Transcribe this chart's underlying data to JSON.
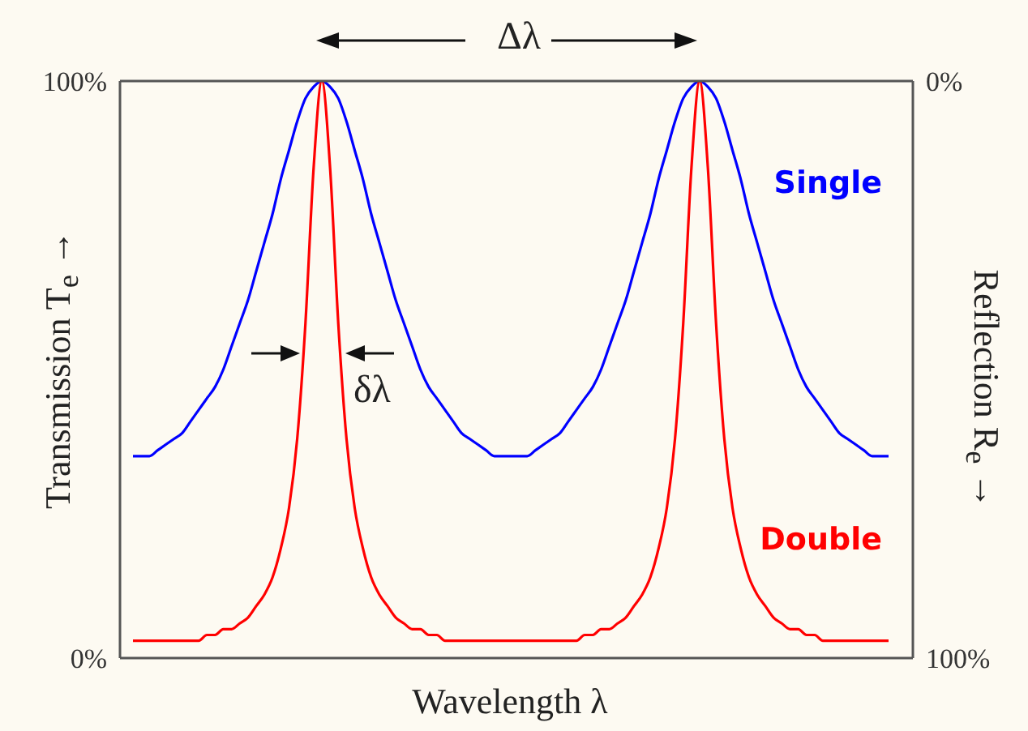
{
  "chart_data": {
    "type": "line",
    "xlabel": "Wavelength λ",
    "ylabel": "Transmission  T$_{e}$  →",
    "y2label": "Reflection  R$_{e}$  →",
    "annotations": [
      "Δλ",
      "δλ"
    ],
    "grid": false,
    "legend": false,
    "marker": "none",
    "line_style": "solid",
    "categories": [
      null,
      null,
      null,
      null,
      null,
      null,
      null,
      null,
      null,
      null,
      null,
      null,
      null,
      null,
      null,
      null,
      null,
      null,
      null,
      null,
      null,
      null,
      null,
      null,
      null,
      null,
      null,
      null,
      null,
      null,
      null,
      null,
      null,
      null,
      null,
      null,
      null,
      null,
      null,
      null,
      null,
      null,
      null,
      null,
      null,
      null,
      null,
      null,
      null,
      null,
      null,
      null,
      null,
      null,
      null,
      null,
      null,
      null,
      null,
      null,
      null,
      null,
      null,
      null,
      null,
      null,
      null,
      null,
      null,
      null,
      null,
      null,
      null,
      null,
      null,
      null,
      null,
      null,
      null,
      null,
      null,
      null,
      null,
      null,
      null,
      null,
      null,
      null,
      null,
      null,
      null,
      null,
      null
    ],
    "ylim": [
      0,
      100
    ],
    "yticks": [
      {
        "value": 0,
        "label": "0%"
      },
      {
        "value": 100,
        "label": "100%"
      }
    ],
    "y2lim": [
      100,
      0
    ],
    "y2ticks": [
      {
        "value": 0,
        "label": "0%"
      },
      {
        "value": 100,
        "label": "100%"
      }
    ],
    "series": [
      {
        "name": "Single",
        "color": "#0000ff",
        "values": [
          35,
          35,
          35,
          36,
          37,
          38,
          39,
          41,
          43,
          45,
          47,
          50,
          54,
          58,
          62,
          67,
          72,
          77,
          83,
          88,
          93,
          97,
          99,
          100,
          99,
          97,
          93,
          88,
          83,
          77,
          72,
          67,
          62,
          58,
          54,
          50,
          47,
          45,
          43,
          41,
          39,
          38,
          37,
          36,
          35,
          35,
          35,
          35,
          35,
          36,
          37,
          38,
          39,
          41,
          43,
          45,
          47,
          50,
          54,
          58,
          62,
          67,
          72,
          77,
          83,
          88,
          93,
          97,
          99,
          100,
          99,
          97,
          93,
          88,
          83,
          77,
          72,
          67,
          62,
          58,
          54,
          50,
          47,
          45,
          43,
          41,
          39,
          38,
          37,
          36,
          35,
          35,
          35
        ]
      },
      {
        "name": "Double",
        "color": "#ff0000",
        "values": [
          3,
          3,
          3,
          3,
          3,
          3,
          3,
          3,
          3,
          4,
          4,
          5,
          5,
          6,
          7,
          9,
          11,
          14,
          19,
          26,
          38,
          58,
          85,
          100,
          85,
          58,
          38,
          26,
          19,
          14,
          11,
          9,
          7,
          6,
          5,
          5,
          4,
          4,
          3,
          3,
          3,
          3,
          3,
          3,
          3,
          3,
          3,
          3,
          3,
          3,
          3,
          3,
          3,
          3,
          3,
          4,
          4,
          5,
          5,
          6,
          7,
          9,
          11,
          14,
          19,
          26,
          38,
          58,
          85,
          100,
          85,
          58,
          38,
          26,
          19,
          14,
          11,
          9,
          7,
          6,
          5,
          5,
          4,
          4,
          3,
          3,
          3,
          3,
          3,
          3,
          3,
          3,
          3
        ]
      }
    ]
  }
}
